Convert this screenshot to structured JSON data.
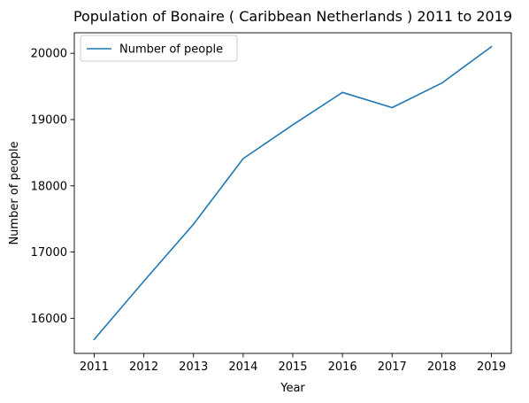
{
  "chart_data": {
    "type": "line",
    "title": "Population of Bonaire ( Caribbean Netherlands ) 2011 to 2019",
    "xlabel": "Year",
    "ylabel": "Number of people",
    "x": [
      2011,
      2012,
      2013,
      2014,
      2015,
      2016,
      2017,
      2018,
      2019
    ],
    "series": [
      {
        "name": "Number of people",
        "color": "#1f77b4",
        "values": [
          15680,
          16560,
          17420,
          18410,
          18920,
          19410,
          19180,
          19550,
          20100
        ]
      }
    ],
    "xticks": [
      "2011",
      "2012",
      "2013",
      "2014",
      "2015",
      "2016",
      "2017",
      "2018",
      "2019"
    ],
    "yticks": [
      "16000",
      "17000",
      "18000",
      "19000",
      "20000"
    ],
    "ytick_values": [
      16000,
      17000,
      18000,
      19000,
      20000
    ],
    "xlim": [
      2010.6,
      2019.4
    ],
    "ylim": [
      15470,
      20310
    ],
    "legend_position": "upper-left",
    "grid": false
  }
}
